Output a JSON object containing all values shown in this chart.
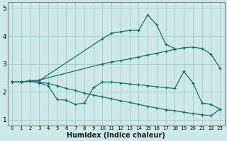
{
  "xlabel": "Humidex (Indice chaleur)",
  "xlim": [
    -0.5,
    23.5
  ],
  "ylim": [
    0.8,
    5.2
  ],
  "bg_color": "#cce8e8",
  "grid_color": "#aacece",
  "line_color": "#1a6b6b",
  "ytick_vals": [
    1,
    2,
    3,
    4,
    5
  ],
  "ytick_labels": [
    "1",
    "2",
    "3",
    "4",
    "5"
  ],
  "xtick_labels": [
    "0",
    "1",
    "2",
    "3",
    "4",
    "5",
    "6",
    "7",
    "8",
    "9",
    "10",
    "11",
    "12",
    "13",
    "14",
    "15",
    "16",
    "17",
    "18",
    "19",
    "20",
    "21",
    "22",
    "23"
  ],
  "line1_x": [
    0,
    1,
    2,
    3,
    10,
    11,
    12,
    13,
    14,
    15,
    16,
    17,
    18
  ],
  "line1_y": [
    2.35,
    2.35,
    2.4,
    2.4,
    3.9,
    4.1,
    4.15,
    4.2,
    4.2,
    4.75,
    4.4,
    3.7,
    3.55
  ],
  "line2_x": [
    0,
    1,
    2,
    3,
    10,
    11,
    12,
    13,
    14,
    15,
    16,
    17,
    18,
    19,
    20,
    21,
    22,
    23
  ],
  "line2_y": [
    2.35,
    2.35,
    2.38,
    2.42,
    3.0,
    3.07,
    3.12,
    3.18,
    3.25,
    3.32,
    3.38,
    3.45,
    3.52,
    3.58,
    3.6,
    3.55,
    3.35,
    2.85
  ],
  "line3_x": [
    0,
    1,
    2,
    3,
    4,
    5,
    6,
    7,
    8,
    9,
    10,
    11,
    12,
    13,
    14,
    15,
    16,
    17,
    18,
    19,
    20,
    21,
    22,
    23
  ],
  "line3_y": [
    2.35,
    2.35,
    2.38,
    2.32,
    2.22,
    1.72,
    1.7,
    1.55,
    1.6,
    2.15,
    2.35,
    2.35,
    2.32,
    2.28,
    2.25,
    2.22,
    2.18,
    2.15,
    2.12,
    2.73,
    2.32,
    1.6,
    1.55,
    1.38
  ],
  "line4_x": [
    0,
    1,
    2,
    3,
    4,
    5,
    6,
    7,
    8,
    9,
    10,
    11,
    12,
    13,
    14,
    15,
    16,
    17,
    18,
    19,
    20,
    21,
    22,
    23
  ],
  "line4_y": [
    2.35,
    2.35,
    2.38,
    2.35,
    2.3,
    2.22,
    2.12,
    2.05,
    1.95,
    1.88,
    1.82,
    1.75,
    1.68,
    1.62,
    1.55,
    1.48,
    1.42,
    1.36,
    1.32,
    1.27,
    1.22,
    1.18,
    1.14,
    1.38
  ]
}
